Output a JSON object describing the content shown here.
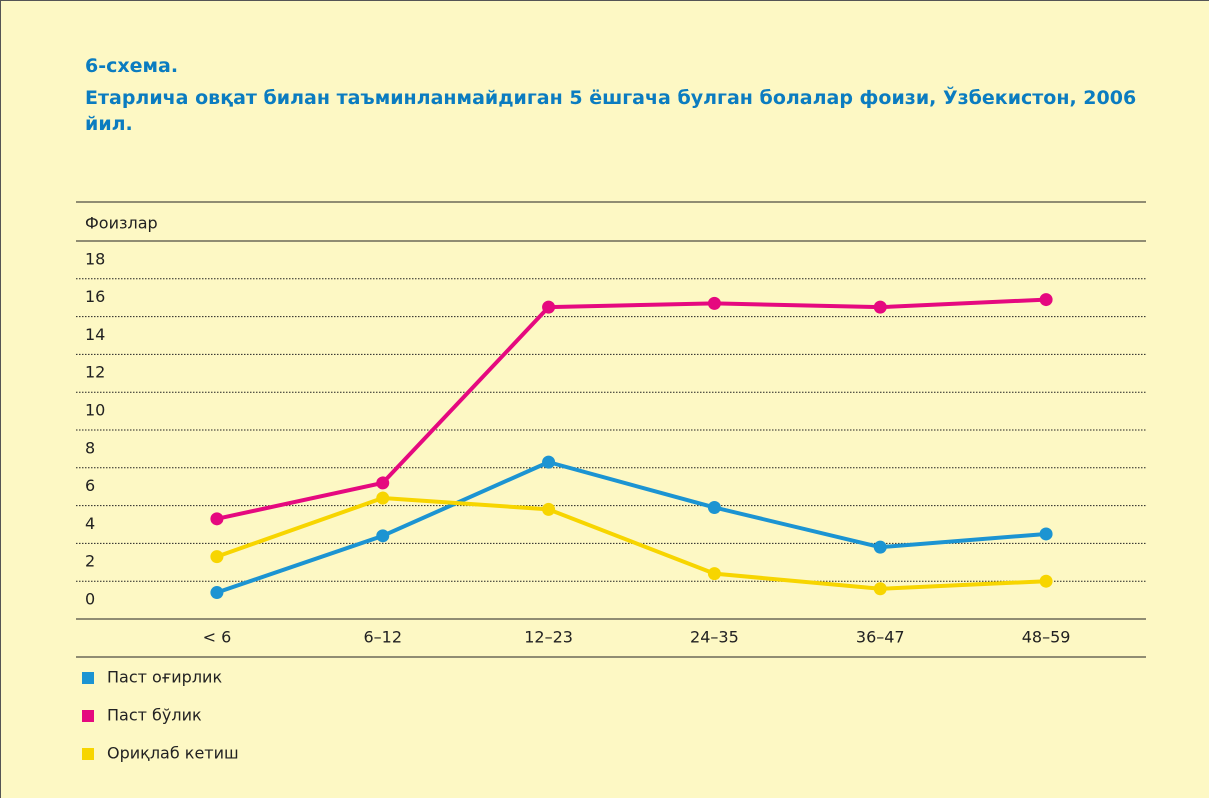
{
  "chart_data": {
    "type": "line",
    "title": "6-схема.",
    "subtitle": "Етарлича овқат билан таъминланмайдиган 5 ёшгача булган болалар фоизи, Ўзбекистон, 2006 йил.",
    "y_label": "Фоизлар",
    "categories": [
      "< 6",
      "6–12",
      "12–23",
      "24–35",
      "36–47",
      "48–59"
    ],
    "series": [
      {
        "name": "Паст оғирлик",
        "color": "#1c94d2",
        "values": [
          1.4,
          4.4,
          8.3,
          5.9,
          3.8,
          4.5
        ]
      },
      {
        "name": "Паст бўлик",
        "color": "#e5097f",
        "values": [
          5.3,
          7.2,
          16.5,
          16.7,
          16.5,
          16.9
        ]
      },
      {
        "name": "Ориқлаб кетиш",
        "color": "#f7d500",
        "values": [
          3.3,
          6.4,
          5.8,
          2.4,
          1.6,
          2.0
        ]
      }
    ],
    "ylim": [
      0,
      20
    ],
    "yticks": [
      0,
      2,
      4,
      6,
      8,
      10,
      12,
      14,
      16,
      18
    ],
    "grid": true
  }
}
